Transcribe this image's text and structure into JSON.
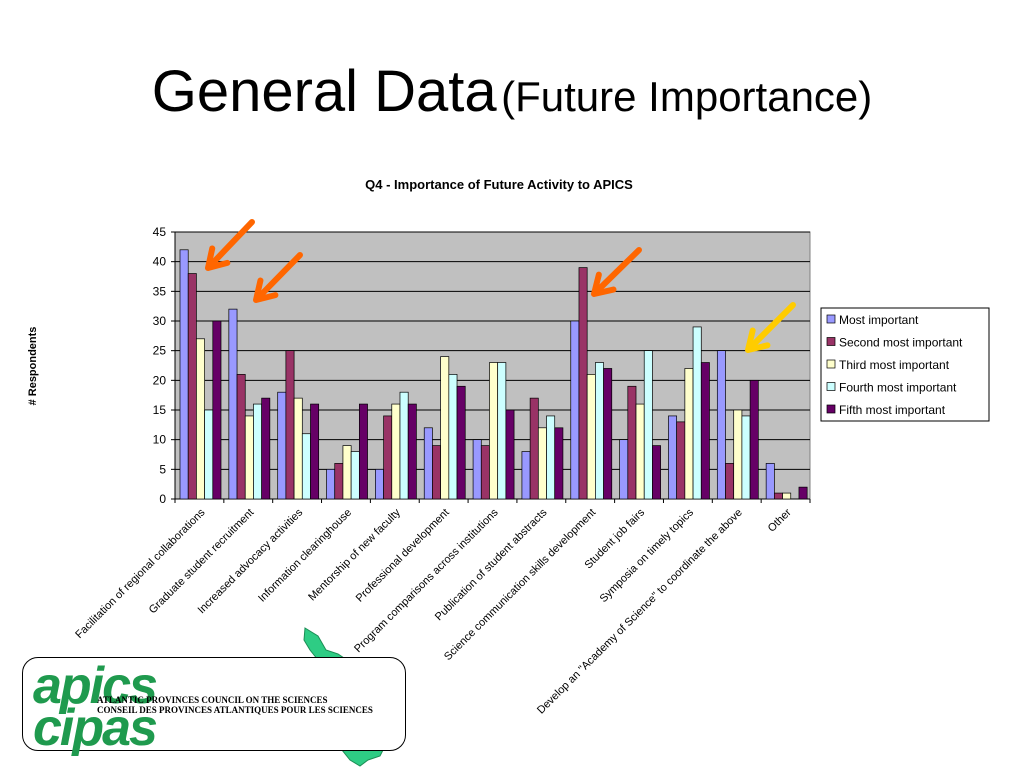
{
  "slide": {
    "title_main": "General Data",
    "title_sub": "(Future Importance)"
  },
  "chart_data": {
    "type": "bar",
    "title": "Q4 - Importance of Future Activity to APICS",
    "ylabel": "# Respondents",
    "xlabel": "",
    "ylim": [
      0,
      45
    ],
    "yticks": [
      0,
      5,
      10,
      15,
      20,
      25,
      30,
      35,
      40,
      45
    ],
    "grid": true,
    "legend_position": "right",
    "plot_background": "#c0c0c0",
    "categories": [
      "Facilitation of regional collaborations",
      "Graduate student recruitment",
      "Increased advocacy activities",
      "Information clearinghouse",
      "Mentorship of new faculty",
      "Professional development",
      "Program comparisons across institutions",
      "Publication of student abstracts",
      "Science communication skills development",
      "Student job fairs",
      "Symposia on timely topics",
      "Develop an \"Academy of Science\" to coordinate the above",
      "Other"
    ],
    "series": [
      {
        "name": "Most important",
        "color": "#9999ff",
        "values": [
          42,
          32,
          18,
          5,
          5,
          12,
          10,
          8,
          30,
          10,
          14,
          25,
          6
        ]
      },
      {
        "name": "Second most important",
        "color": "#993366",
        "values": [
          38,
          21,
          25,
          6,
          14,
          9,
          9,
          17,
          39,
          19,
          13,
          6,
          1
        ]
      },
      {
        "name": "Third most important",
        "color": "#ffffcc",
        "values": [
          27,
          14,
          17,
          9,
          16,
          24,
          23,
          12,
          21,
          16,
          22,
          15,
          1
        ]
      },
      {
        "name": "Fourth most important",
        "color": "#ccffff",
        "values": [
          15,
          16,
          11,
          8,
          18,
          21,
          23,
          14,
          23,
          25,
          29,
          14,
          0
        ]
      },
      {
        "name": "Fifth most important",
        "color": "#660066",
        "values": [
          30,
          17,
          16,
          16,
          16,
          19,
          15,
          12,
          22,
          9,
          23,
          20,
          2
        ]
      }
    ],
    "highlight_arrows": [
      {
        "color": "#ff6600"
      },
      {
        "color": "#ff6600"
      },
      {
        "color": "#ff6600"
      },
      {
        "color": "#ffcc00"
      }
    ]
  },
  "logo": {
    "word_top": "apics",
    "word_bottom": "cipas",
    "org_en": "ATLANTIC PROVINCES COUNCIL ON  THE SCIENCES",
    "org_fr": "CONSEIL DES PROVINCES  ATLANTIQUES POUR LES SCIENCES",
    "color": "#1f9a4e"
  }
}
